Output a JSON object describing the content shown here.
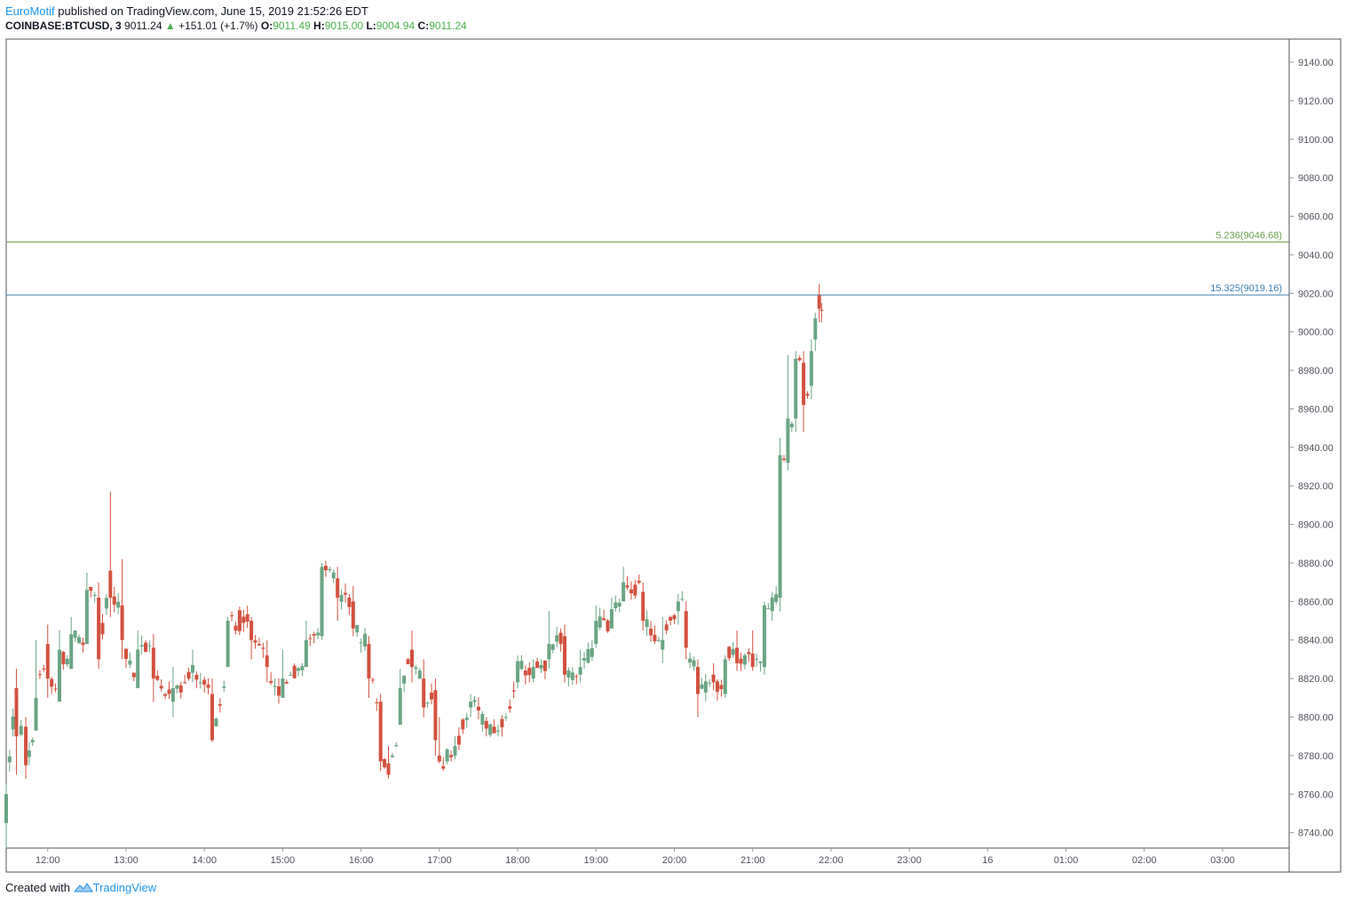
{
  "header": {
    "author": "EuroMotif",
    "published_text": "published on TradingView.com, June 15, 2019 21:52:26 EDT",
    "symbol": "COINBASE:BTCUSD, 3",
    "last_price": "9011.24",
    "change_arrow": "▲",
    "change": "+151.01 (+1.7%)",
    "o_label": "O:",
    "o_value": "9011.49",
    "h_label": "H:",
    "h_value": "9015.00",
    "l_label": "L:",
    "l_value": "9004.94",
    "c_label": "C:",
    "c_value": "9011.24"
  },
  "footer": {
    "created_with": "Created with",
    "brand": "TradingView"
  },
  "colors": {
    "up": "#6aa584",
    "down": "#d3513f",
    "fib_green": "#6aa04f",
    "fib_blue": "#3d7fae",
    "grid": "#9598a1"
  },
  "chart_data": {
    "type": "candlestick",
    "title": "COINBASE:BTCUSD, 3",
    "ylim": [
      8732,
      9152
    ],
    "y_ticks": [
      "8740.00",
      "8760.00",
      "8780.00",
      "8800.00",
      "8820.00",
      "8840.00",
      "8860.00",
      "8880.00",
      "8900.00",
      "8920.00",
      "8940.00",
      "8960.00",
      "8980.00",
      "9000.00",
      "9020.00",
      "9040.00",
      "9060.00",
      "9080.00",
      "9100.00",
      "9120.00",
      "9140.00"
    ],
    "x_ticks": [
      "12:00",
      "13:00",
      "14:00",
      "15:00",
      "16:00",
      "17:00",
      "18:00",
      "19:00",
      "20:00",
      "21:00",
      "22:00",
      "23:00",
      "16",
      "01:00",
      "02:00",
      "03:00"
    ],
    "x_tick_hours": [
      12,
      13,
      14,
      15,
      16,
      17,
      18,
      19,
      20,
      21,
      22,
      23,
      24,
      25,
      26,
      27
    ],
    "x_range_hours": [
      11.47,
      27.85
    ],
    "levels": [
      {
        "label": "5.236(9046.68)",
        "value": 9046.68,
        "color": "#6aa04f"
      },
      {
        "label": "15.325(9019.16)",
        "value": 9019.16,
        "color": "#3d7fae"
      }
    ],
    "anchors": [
      [
        11.47,
        8745,
        8760,
        8732,
        8765
      ],
      [
        11.6,
        8815,
        8790,
        8770,
        8825
      ],
      [
        11.72,
        8795,
        8775,
        8768,
        8800
      ],
      [
        11.85,
        8793,
        8810,
        8800,
        8840
      ],
      [
        12.0,
        8838,
        8820,
        8810,
        8848
      ],
      [
        12.15,
        8808,
        8835,
        8815,
        8845
      ],
      [
        12.3,
        8825,
        8843,
        8835,
        8852
      ],
      [
        12.5,
        8838,
        8866,
        8860,
        8875
      ],
      [
        12.65,
        8862,
        8830,
        8825,
        8870
      ],
      [
        12.8,
        8876,
        8862,
        8852,
        8917
      ],
      [
        12.95,
        8858,
        8840,
        8830,
        8882
      ],
      [
        13.15,
        8815,
        8835,
        8820,
        8845
      ],
      [
        13.35,
        8836,
        8820,
        8808,
        8843
      ],
      [
        13.6,
        8808,
        8815,
        8800,
        8826
      ],
      [
        13.85,
        8823,
        8827,
        8818,
        8835
      ],
      [
        14.1,
        8812,
        8788,
        8787,
        8820
      ],
      [
        14.3,
        8826,
        8850,
        8826,
        8852
      ],
      [
        14.6,
        8850,
        8840,
        8830,
        8852
      ],
      [
        14.8,
        8832,
        8826,
        8818,
        8840
      ],
      [
        15.0,
        8810,
        8820,
        8812,
        8835
      ],
      [
        15.3,
        8826,
        8840,
        8830,
        8850
      ],
      [
        15.5,
        8842,
        8878,
        8840,
        8880
      ],
      [
        15.7,
        8872,
        8862,
        8850,
        8878
      ],
      [
        15.9,
        8860,
        8846,
        8842,
        8868
      ],
      [
        16.1,
        8838,
        8820,
        8810,
        8842
      ],
      [
        16.25,
        8808,
        8777,
        8772,
        8812
      ],
      [
        16.35,
        8776,
        8770,
        8768,
        8785
      ],
      [
        16.5,
        8796,
        8815,
        8800,
        8825
      ],
      [
        16.65,
        8835,
        8826,
        8818,
        8845
      ],
      [
        16.8,
        8820,
        8805,
        8800,
        8830
      ],
      [
        16.95,
        8814,
        8788,
        8780,
        8820
      ],
      [
        17.0,
        8780,
        8777,
        8776,
        8800
      ],
      [
        17.2,
        8780,
        8785,
        8778,
        8790
      ],
      [
        17.4,
        8805,
        8808,
        8800,
        8812
      ],
      [
        17.6,
        8798,
        8794,
        8790,
        8800
      ],
      [
        17.75,
        8793,
        8793,
        8790,
        8796
      ],
      [
        17.85,
        8800,
        8800,
        8798,
        8802
      ],
      [
        18.0,
        8818,
        8829,
        8815,
        8832
      ],
      [
        18.2,
        8820,
        8826,
        8818,
        8830
      ],
      [
        18.4,
        8830,
        8838,
        8825,
        8855
      ],
      [
        18.6,
        8842,
        8822,
        8818,
        8848
      ],
      [
        18.8,
        8822,
        8826,
        8818,
        8835
      ],
      [
        19.0,
        8838,
        8850,
        8836,
        8858
      ],
      [
        19.2,
        8846,
        8856,
        8846,
        8862
      ],
      [
        19.35,
        8860,
        8870,
        8865,
        8878
      ],
      [
        19.6,
        8865,
        8850,
        8845,
        8870
      ],
      [
        19.85,
        8835,
        8840,
        8828,
        8852
      ],
      [
        20.05,
        8855,
        8860,
        8848,
        8864
      ],
      [
        20.15,
        8855,
        8836,
        8830,
        8860
      ],
      [
        20.3,
        8826,
        8812,
        8800,
        8830
      ],
      [
        20.5,
        8822,
        8818,
        8814,
        8828
      ],
      [
        20.65,
        8812,
        8830,
        8810,
        8832
      ],
      [
        20.8,
        8836,
        8828,
        8824,
        8845
      ],
      [
        21.0,
        8833,
        8826,
        8824,
        8845
      ],
      [
        21.15,
        8826,
        8858,
        8822,
        8860
      ],
      [
        21.25,
        8855,
        8862,
        8850,
        8865
      ],
      [
        21.35,
        8862,
        8936,
        8855,
        8945
      ],
      [
        21.45,
        8932,
        8955,
        8928,
        8988
      ],
      [
        21.55,
        8955,
        8986,
        8948,
        8990
      ],
      [
        21.65,
        8984,
        8962,
        8948,
        8990
      ],
      [
        21.75,
        8972,
        8990,
        8965,
        8996
      ],
      [
        21.8,
        8996,
        9007,
        8990,
        9010
      ],
      [
        21.85,
        9019,
        9012,
        9005,
        9025
      ],
      [
        21.88,
        9011.49,
        9011.24,
        9004.94,
        9015
      ]
    ]
  }
}
